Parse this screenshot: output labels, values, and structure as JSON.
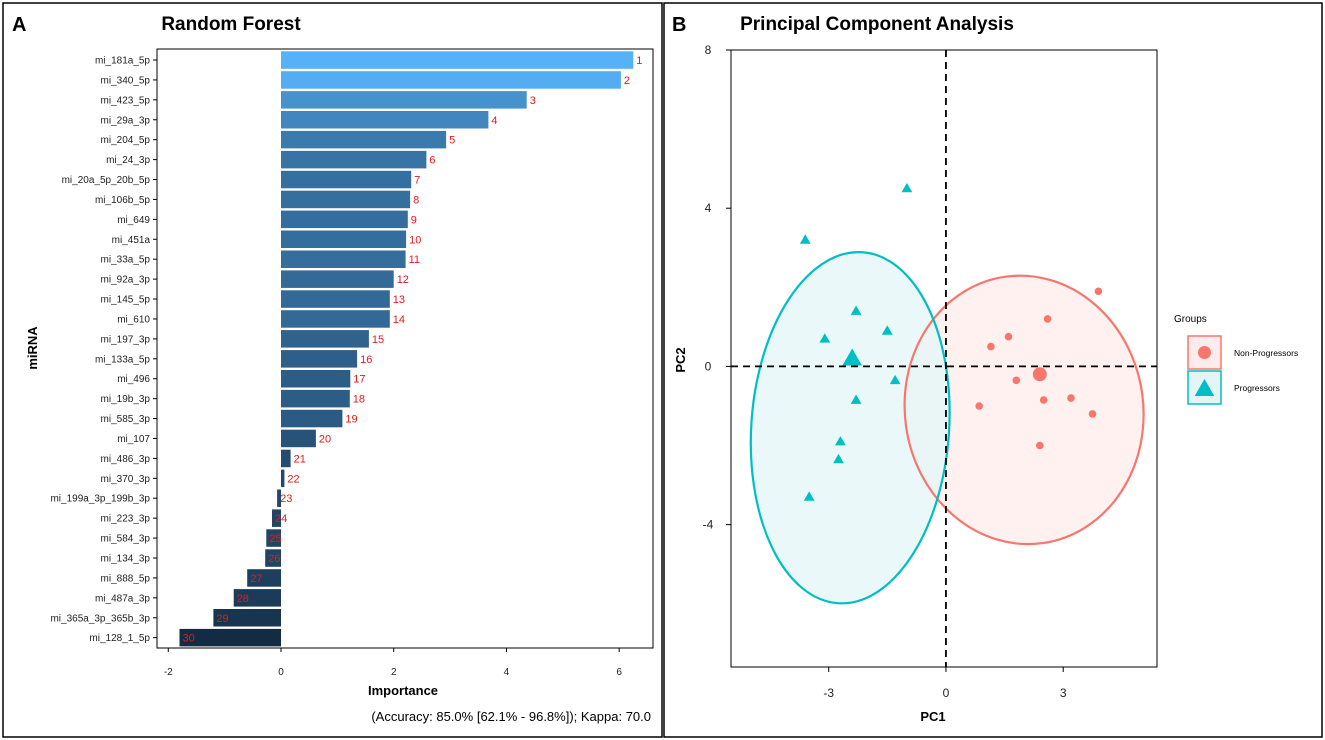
{
  "panels": {
    "a": {
      "letter": "A"
    },
    "b": {
      "letter": "B"
    }
  },
  "colors": {
    "bar_top": "#56B1F7",
    "bar_bottom": "#132B43",
    "rank_label": "#E41A1C",
    "non_progressors": "#F8766D",
    "progressors": "#00BFC4",
    "ellipse_fill_np": "#FDECEB",
    "ellipse_fill_p": "#E3F6F7"
  },
  "chart_data": [
    {
      "type": "bar",
      "orientation": "horizontal",
      "title": "Random Forest",
      "xlabel": "Importance",
      "ylabel": "miRNA",
      "caption": "(Accuracy: 85.0% [62.1% - 96.8%]); Kappa: 70.0",
      "xlim": [
        -2.2,
        6.6
      ],
      "xticks": [
        -2,
        0,
        2,
        4,
        6
      ],
      "categories": [
        "mi_181a_5p",
        "mi_340_5p",
        "mi_423_5p",
        "mi_29a_3p",
        "mi_204_5p",
        "mi_24_3p",
        "mi_20a_5p_20b_5p",
        "mi_106b_5p",
        "mi_649",
        "mi_451a",
        "mi_33a_5p",
        "mi_92a_3p",
        "mi_145_5p",
        "mi_610",
        "mi_197_3p",
        "mi_133a_5p",
        "mi_496",
        "mi_19b_3p",
        "mi_585_3p",
        "mi_107",
        "mi_486_3p",
        "mi_370_3p",
        "mi_199a_3p_199b_3p",
        "mi_223_3p",
        "mi_584_3p",
        "mi_134_3p",
        "mi_888_5p",
        "mi_487a_3p",
        "mi_365a_3p_365b_3p",
        "mi_128_1_5p"
      ],
      "values": [
        6.25,
        6.03,
        4.36,
        3.68,
        2.93,
        2.58,
        2.31,
        2.29,
        2.25,
        2.22,
        2.21,
        2.0,
        1.93,
        1.93,
        1.56,
        1.35,
        1.23,
        1.22,
        1.09,
        0.62,
        0.17,
        0.06,
        -0.07,
        -0.16,
        -0.26,
        -0.28,
        -0.6,
        -0.84,
        -1.2,
        -1.8
      ],
      "ranks": [
        "1",
        "2",
        "3",
        "4",
        "5",
        "6",
        "7",
        "8",
        "9",
        "10",
        "11",
        "12",
        "13",
        "14",
        "15",
        "16",
        "17",
        "18",
        "19",
        "20",
        "21",
        "22",
        "23",
        "24",
        "25",
        "26",
        "27",
        "28",
        "29",
        "30"
      ]
    },
    {
      "type": "scatter",
      "title": "Principal Component Analysis",
      "xlabel": "PC1",
      "ylabel": "PC2",
      "xlim": [
        -5.5,
        5.4
      ],
      "ylim": [
        -7.6,
        8.0
      ],
      "xticks": [
        -3,
        0,
        3
      ],
      "yticks": [
        -4,
        0,
        4,
        8
      ],
      "reference_lines": {
        "x": 0,
        "y": 0,
        "style": "dashed"
      },
      "legend": {
        "title": "Groups",
        "position": "right",
        "entries": [
          "Non-Progressors",
          "Progressors"
        ]
      },
      "series": [
        {
          "name": "Non-Progressors",
          "marker": "circle",
          "points": [
            [
              3.9,
              1.9
            ],
            [
              2.6,
              1.2
            ],
            [
              1.6,
              0.75
            ],
            [
              1.15,
              0.5
            ],
            [
              1.8,
              -0.35
            ],
            [
              0.85,
              -1.0
            ],
            [
              2.5,
              -0.85
            ],
            [
              3.2,
              -0.8
            ],
            [
              3.75,
              -1.2
            ],
            [
              2.4,
              -2.0
            ]
          ],
          "centroid": [
            2.4,
            -0.2
          ],
          "ellipse": {
            "center": [
              2.0,
              -1.1
            ],
            "rx": 3.05,
            "ry": 3.4,
            "angle_deg": -8
          }
        },
        {
          "name": "Progressors",
          "marker": "triangle",
          "points": [
            [
              -1.0,
              4.5
            ],
            [
              -3.6,
              3.2
            ],
            [
              -2.3,
              1.4
            ],
            [
              -1.5,
              0.9
            ],
            [
              -3.1,
              0.7
            ],
            [
              -1.3,
              -0.35
            ],
            [
              -2.3,
              -0.85
            ],
            [
              -2.7,
              -1.9
            ],
            [
              -2.75,
              -2.35
            ],
            [
              -3.5,
              -3.3
            ]
          ],
          "centroid": [
            -2.4,
            0.2
          ],
          "ellipse": {
            "center": [
              -2.45,
              -1.55
            ],
            "rx": 4.5,
            "ry": 2.5,
            "angle_deg": -86
          }
        }
      ]
    }
  ]
}
